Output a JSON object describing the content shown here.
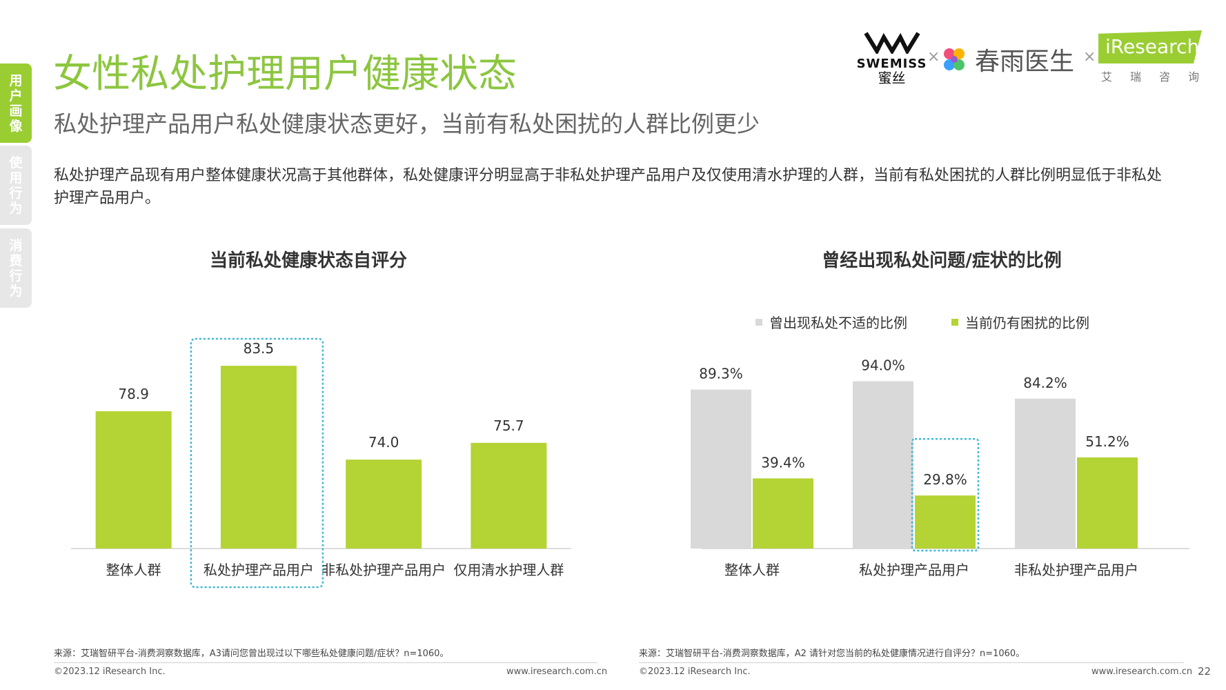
{
  "sidebar": {
    "tabs": [
      {
        "label": "用户画像"
      },
      {
        "label": "使用行为"
      },
      {
        "label": "消费行为"
      }
    ]
  },
  "header": {
    "title": "女性私处护理用户健康状态",
    "subtitle": "私处护理产品用户私处健康状态更好，当前有私处困扰的人群比例更少",
    "description": "私处护理产品现有用户整体健康状况高于其他群体，私处健康评分明显高于非私处护理产品用户及仅使用清水护理的人群，当前有私处困扰的人群比例明显低于非私处护理产品用户。"
  },
  "logos": {
    "swemiss_name": "SWEMISS",
    "swemiss_cn": "蜜丝",
    "times": "×",
    "chunyu": "春雨医生",
    "iresearch": "iResearch",
    "iresearch_cn": [
      "艾",
      "瑞",
      "咨",
      "询"
    ]
  },
  "colors": {
    "green": "#b4d334",
    "gray": "#d9d9d9",
    "highlight": "#3fb8d4",
    "title_green": "#8cc63f"
  },
  "chart_data": [
    {
      "type": "bar",
      "title": "当前私处健康状态自评分",
      "categories": [
        "整体人群",
        "私处护理产品用户",
        "非私处护理产品用户",
        "仅用清水护理人群"
      ],
      "values": [
        78.9,
        83.5,
        74.0,
        75.7
      ],
      "value_labels": [
        "78.9",
        "83.5",
        "74.0",
        "75.7"
      ],
      "highlighted_category": "私处护理产品用户",
      "ylim": [
        65,
        87
      ],
      "grid": false
    },
    {
      "type": "bar",
      "title": "曾经出现私处问题/症状的比例",
      "categories": [
        "整体人群",
        "私处护理产品用户",
        "非私处护理产品用户"
      ],
      "series": [
        {
          "name": "曾出现私处不适的比例",
          "values": [
            89.3,
            94.0,
            84.2
          ],
          "labels": [
            "89.3%",
            "94.0%",
            "84.2%"
          ],
          "color": "#d9d9d9"
        },
        {
          "name": "当前仍有困扰的比例",
          "values": [
            39.4,
            29.8,
            51.2
          ],
          "labels": [
            "39.4%",
            "29.8%",
            "51.2%"
          ],
          "color": "#b4d334"
        }
      ],
      "highlighted": {
        "series": "当前仍有困扰的比例",
        "category": "私处护理产品用户"
      },
      "ylim": [
        0,
        100
      ],
      "legend": "top",
      "grid": false
    }
  ],
  "footer": {
    "left_source": "来源：艾瑞智研平台-消费洞察数据库，A3请问您曾出现过以下哪些私处健康问题/症状？n=1060。",
    "right_source": "来源：艾瑞智研平台-消费洞察数据库，A2 请针对您当前的私处健康情况进行自评分？n=1060。",
    "copyright": "©2023.12 iResearch Inc.",
    "website": "www.iresearch.com.cn",
    "page_number": "22"
  }
}
